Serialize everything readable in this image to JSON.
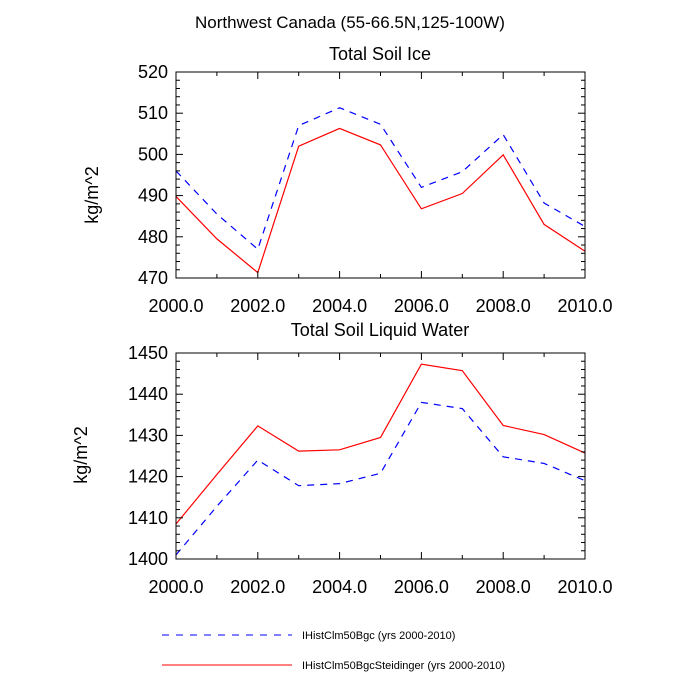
{
  "figure": {
    "suptitle": "Northwest Canada (55-66.5N,125-100W)"
  },
  "chart_data": [
    {
      "type": "line",
      "title": "Total Soil Ice",
      "xlabel": "",
      "ylabel": "kg/m^2",
      "xlim": [
        2000,
        2010
      ],
      "ylim": [
        470,
        520
      ],
      "x_ticks": [
        "2000.0",
        "2002.0",
        "2004.0",
        "2006.0",
        "2008.0",
        "2010.0"
      ],
      "y_ticks": [
        "470",
        "480",
        "490",
        "500",
        "510",
        "520"
      ],
      "x": [
        2000,
        2001,
        2002,
        2003,
        2004,
        2005,
        2006,
        2007,
        2008,
        2009,
        2010
      ],
      "series": [
        {
          "name": "IHistClm50Bgc (yrs 2000-2010)",
          "color": "#0000ff",
          "dash": "dashed",
          "values": [
            496.0,
            485.5,
            477.0,
            507.0,
            511.3,
            507.3,
            492.0,
            495.8,
            504.8,
            488.2,
            482.5
          ]
        },
        {
          "name": "IHistClm50BgcSteidinger (yrs 2000-2010)",
          "color": "#ff0000",
          "dash": "solid",
          "values": [
            489.8,
            479.5,
            471.3,
            502.0,
            506.3,
            502.3,
            486.8,
            490.5,
            499.9,
            483.0,
            476.5
          ]
        }
      ]
    },
    {
      "type": "line",
      "title": "Total Soil Liquid Water",
      "xlabel": "",
      "ylabel": "kg/m^2",
      "xlim": [
        2000,
        2010
      ],
      "ylim": [
        1400,
        1450
      ],
      "x_ticks": [
        "2000.0",
        "2002.0",
        "2004.0",
        "2006.0",
        "2008.0",
        "2010.0"
      ],
      "y_ticks": [
        "1400",
        "1410",
        "1420",
        "1430",
        "1440",
        "1450"
      ],
      "x": [
        2000,
        2001,
        2002,
        2003,
        2004,
        2005,
        2006,
        2007,
        2008,
        2009,
        2010
      ],
      "series": [
        {
          "name": "IHistClm50Bgc (yrs 2000-2010)",
          "color": "#0000ff",
          "dash": "dashed",
          "values": [
            1401.0,
            1412.8,
            1424.0,
            1417.8,
            1418.3,
            1420.8,
            1438.0,
            1436.5,
            1424.8,
            1423.2,
            1419.0
          ]
        },
        {
          "name": "IHistClm50BgcSteidinger (yrs 2000-2010)",
          "color": "#ff0000",
          "dash": "solid",
          "values": [
            1408.5,
            1420.5,
            1432.3,
            1426.2,
            1426.5,
            1429.5,
            1447.3,
            1445.7,
            1432.4,
            1430.2,
            1425.7
          ]
        }
      ]
    }
  ],
  "legend": [
    {
      "label": "IHistClm50Bgc (yrs 2000-2010)",
      "color": "#0000ff",
      "dash": "dashed"
    },
    {
      "label": "IHistClm50BgcSteidinger (yrs 2000-2010)",
      "color": "#ff0000",
      "dash": "solid"
    }
  ]
}
